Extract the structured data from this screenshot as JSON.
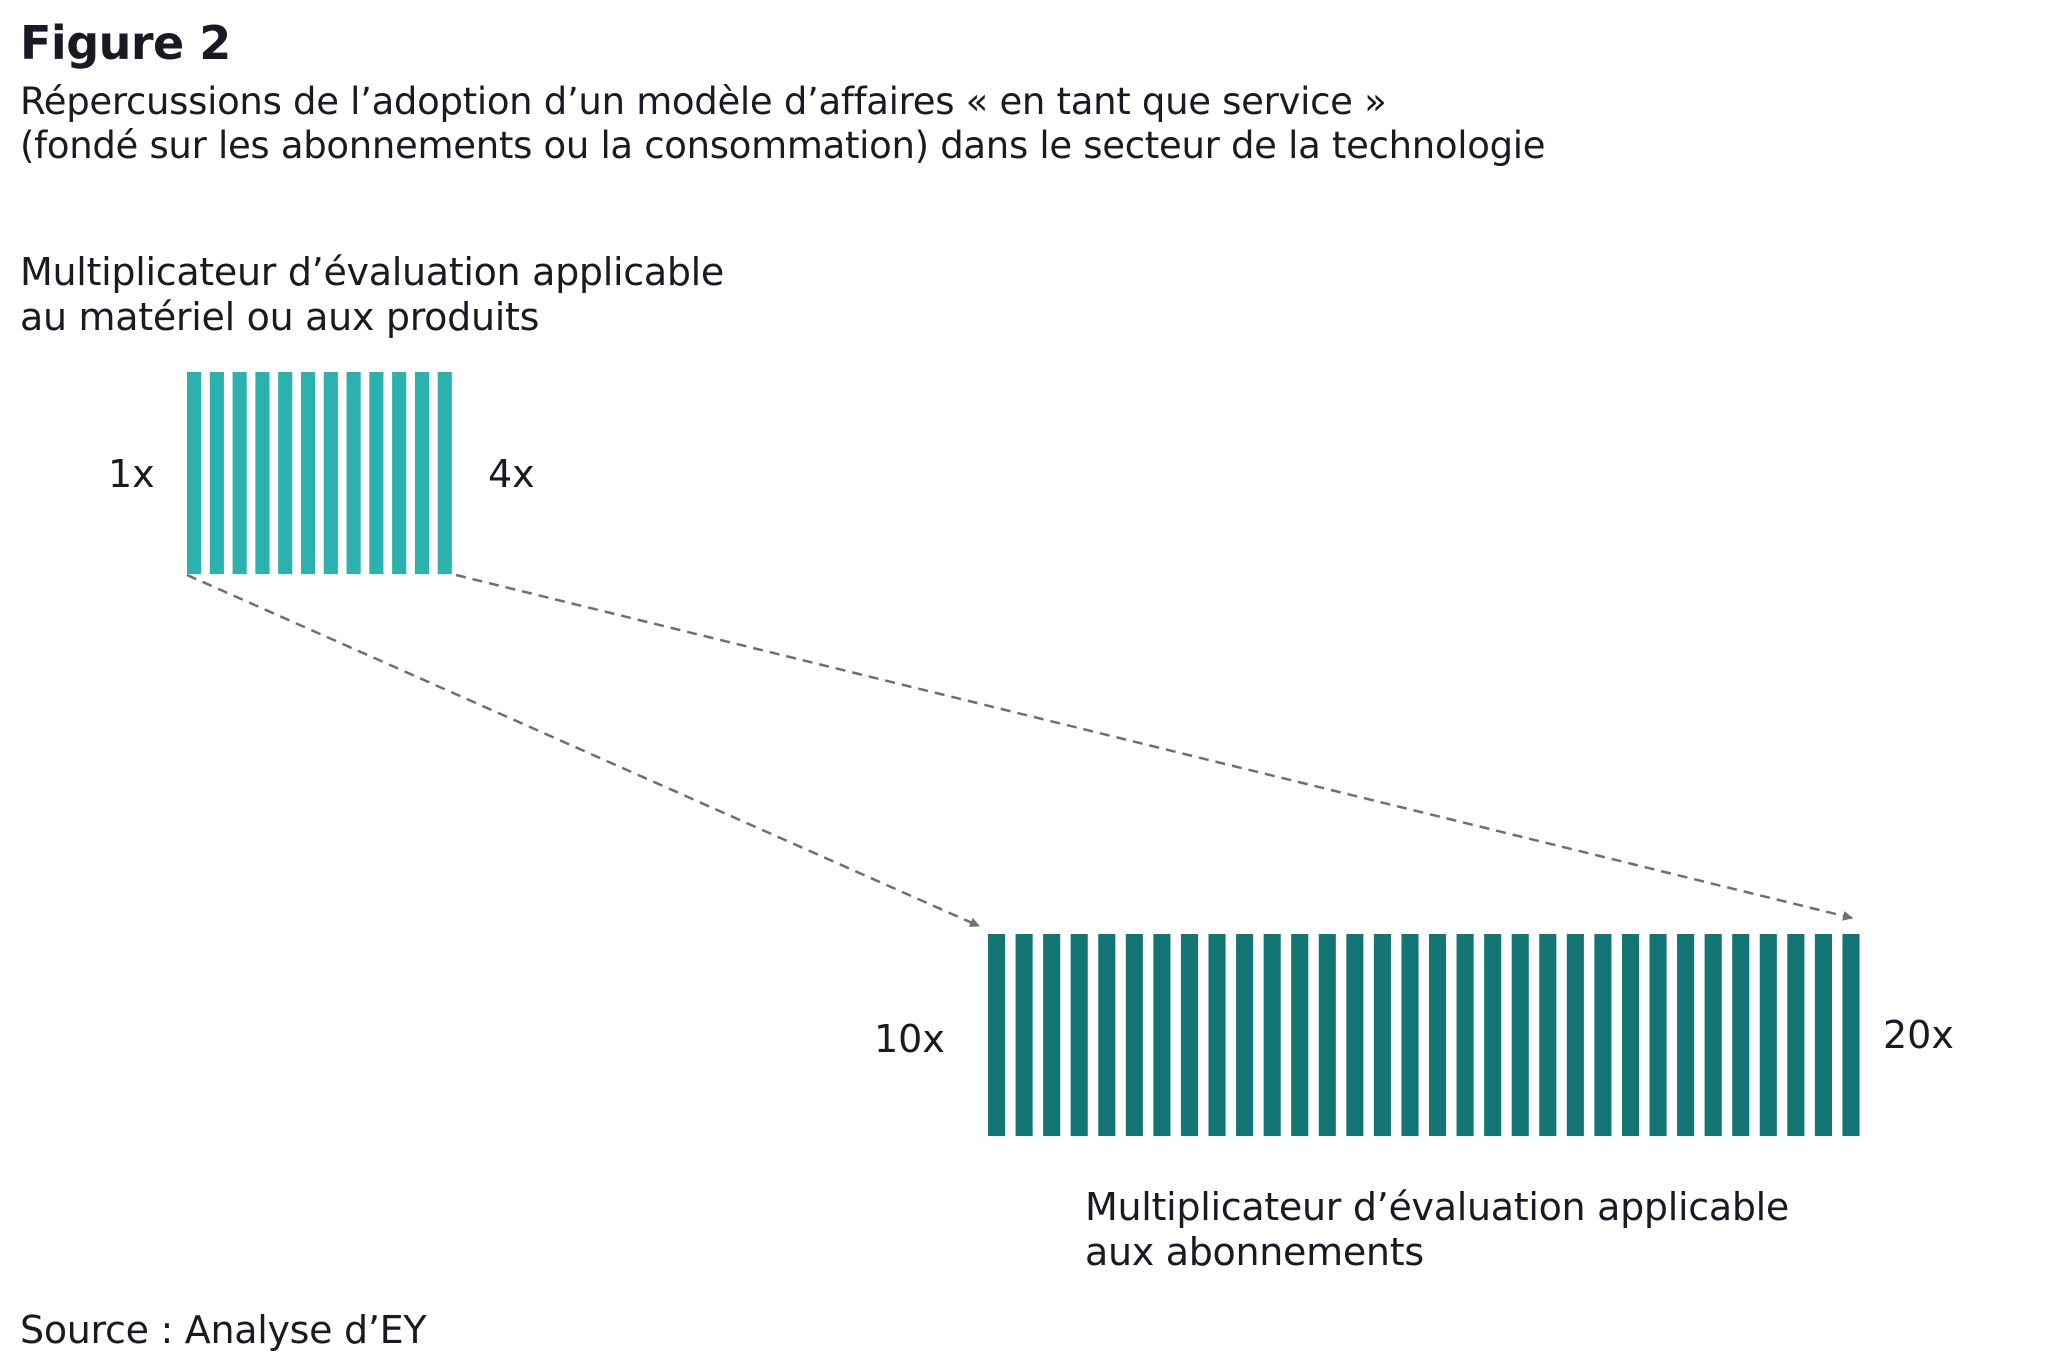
{
  "figure_label": "Figure 2",
  "subtitle": {
    "line1": "Répercussions de l’adoption d’un modèle d’affaires « en tant que service »",
    "line2": "(fondé sur les abonnements ou la consommation) dans le secteur de la technologie"
  },
  "hardware_block": {
    "caption_line1": "Multiplicateur d’évaluation applicable",
    "caption_line2": "au matériel ou aux produits",
    "low_label": "1x",
    "high_label": "4x",
    "color": "#2bb2ae"
  },
  "subscription_block": {
    "caption_line1": "Multiplicateur d’évaluation applicable",
    "caption_line2": "aux abonnements",
    "low_label": "10x",
    "high_label": "20x",
    "color": "#137574"
  },
  "arrow_color": "#6e6e78",
  "source": "Source : Analyse d’EY"
}
